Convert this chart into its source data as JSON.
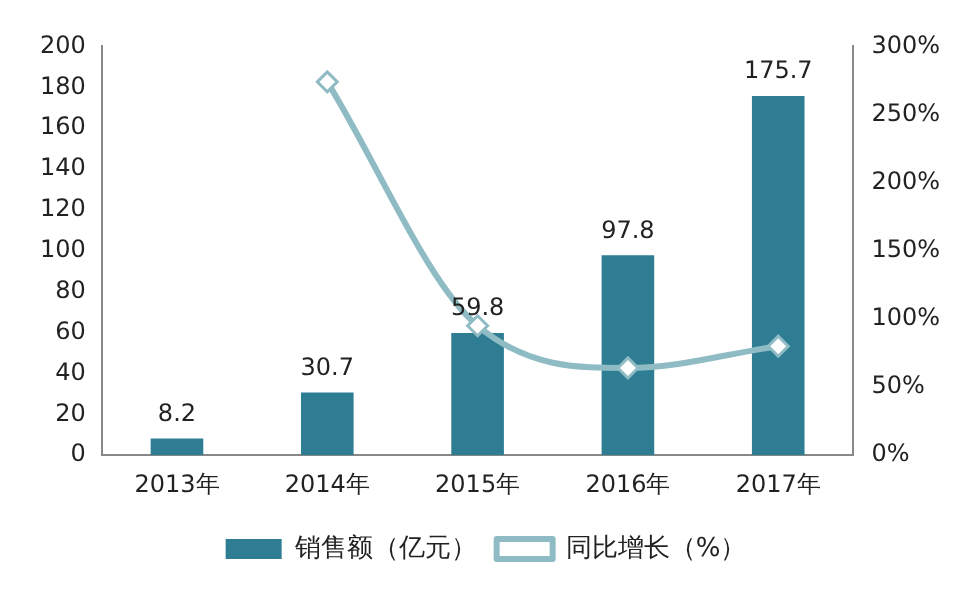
{
  "chart_data": {
    "type": "bar",
    "categories": [
      "2013年",
      "2014年",
      "2015年",
      "2016年",
      "2017年"
    ],
    "series": [
      {
        "name": "销售额（亿元）",
        "color": "#2e7d93",
        "values": [
          8.2,
          30.7,
          59.8,
          97.8,
          175.7
        ],
        "value_labels": [
          "8.2",
          "30.7",
          "59.8",
          "97.8",
          "175.7"
        ]
      },
      {
        "name": "同比增长（%）",
        "type": "line",
        "axis": "y2",
        "color": "#8fbcc4",
        "marker": "diamond",
        "values": [
          null,
          274,
          95,
          64,
          80
        ]
      }
    ],
    "ylim": [
      0,
      200
    ],
    "yticks": [
      0,
      20,
      40,
      60,
      80,
      100,
      120,
      140,
      160,
      180,
      200
    ],
    "y2lim": [
      0,
      300
    ],
    "y2ticks": [
      {
        "value": 0,
        "label": "0%"
      },
      {
        "value": 50,
        "label": "50%"
      },
      {
        "value": 100,
        "label": "100%"
      },
      {
        "value": 150,
        "label": "150%"
      },
      {
        "value": 200,
        "label": "200%"
      },
      {
        "value": 250,
        "label": "250%"
      },
      {
        "value": 300,
        "label": "300%"
      }
    ],
    "grid": false,
    "legend": "bottom"
  }
}
